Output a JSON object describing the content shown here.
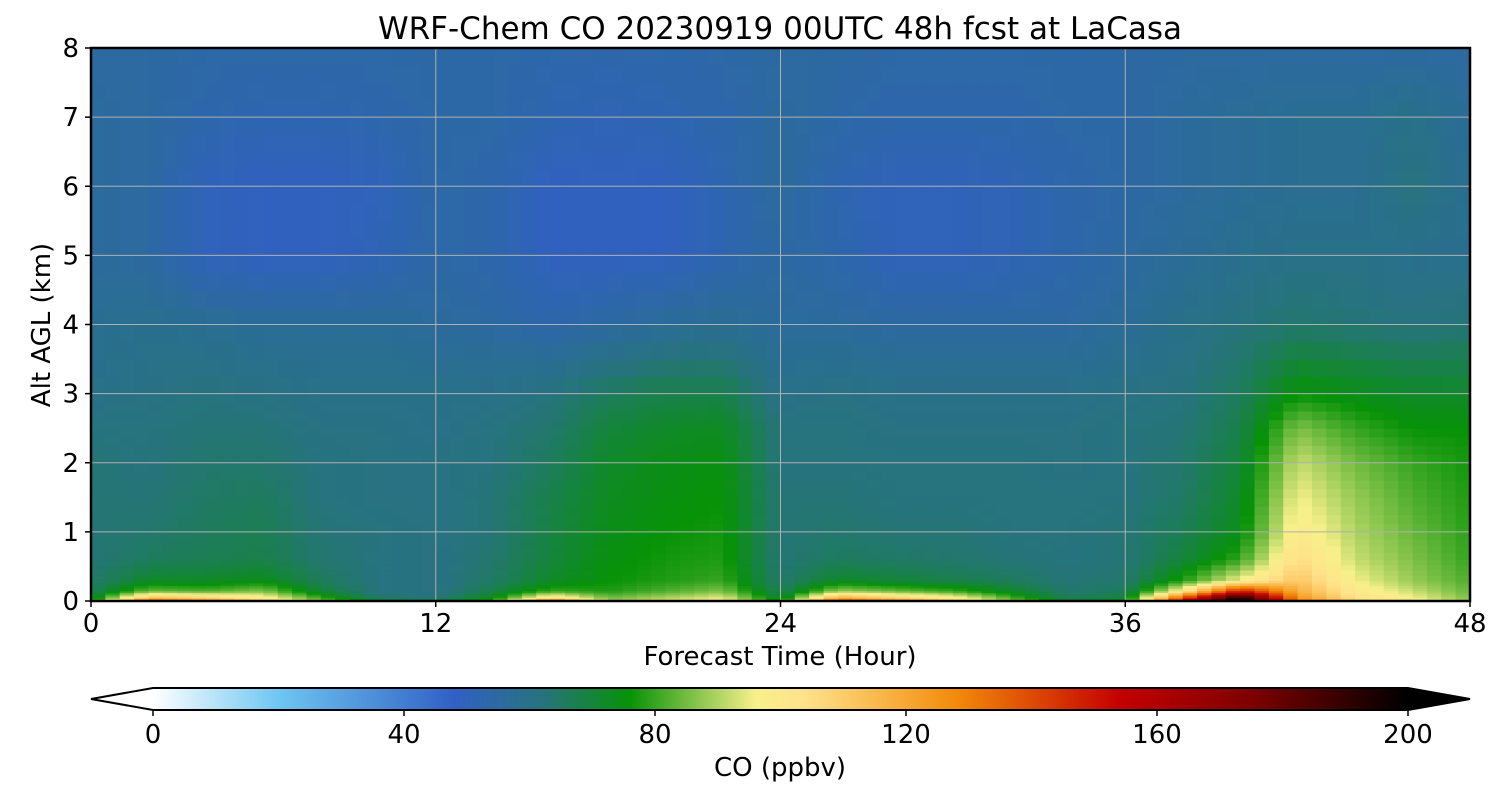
{
  "chart_data": {
    "type": "heatmap",
    "title": "WRF-Chem CO  20230919 00UTC 48h fcst at LaCasa",
    "xlabel": "Forecast Time (Hour)",
    "ylabel": "Alt AGL (km)",
    "xlim": [
      0,
      48
    ],
    "ylim": [
      0,
      8
    ],
    "xticks": [
      0,
      12,
      24,
      36,
      48
    ],
    "yticks": [
      0,
      1,
      2,
      3,
      4,
      5,
      6,
      7,
      8
    ],
    "grid": true,
    "colorbar": {
      "label": "CO  (ppbv)",
      "range": [
        0,
        200
      ],
      "ticks": [
        0,
        40,
        80,
        120,
        160,
        200
      ],
      "extend": "both",
      "stops": [
        {
          "value": 0,
          "color": "#ffffff"
        },
        {
          "value": 20,
          "color": "#6ec6f2"
        },
        {
          "value": 48,
          "color": "#3160c4"
        },
        {
          "value": 62,
          "color": "#27737e"
        },
        {
          "value": 76,
          "color": "#079207"
        },
        {
          "value": 96,
          "color": "#f7f08a"
        },
        {
          "value": 104,
          "color": "#ffe28a"
        },
        {
          "value": 128,
          "color": "#f38a0a"
        },
        {
          "value": 154,
          "color": "#c40000"
        },
        {
          "value": 176,
          "color": "#7a0000"
        },
        {
          "value": 200,
          "color": "#000000"
        }
      ]
    },
    "x": [
      0,
      2,
      4,
      6,
      8,
      10,
      12,
      14,
      16,
      18,
      20,
      22,
      24,
      26,
      28,
      30,
      32,
      34,
      36,
      38,
      40,
      42,
      44,
      46,
      48
    ],
    "y": [
      0,
      0.05,
      0.15,
      0.3,
      0.6,
      1,
      1.5,
      2,
      2.5,
      3,
      4,
      5,
      6,
      7,
      8
    ],
    "values": [
      [
        78,
        150,
        130,
        110,
        90,
        78,
        78,
        84,
        150,
        90,
        95,
        100,
        78,
        150,
        130,
        110,
        90,
        76,
        78,
        160,
        200,
        130,
        110,
        100,
        90
      ],
      [
        70,
        115,
        110,
        100,
        80,
        64,
        62,
        74,
        105,
        85,
        90,
        95,
        70,
        120,
        110,
        100,
        82,
        66,
        70,
        140,
        200,
        125,
        104,
        96,
        86
      ],
      [
        66,
        84,
        82,
        86,
        70,
        62,
        61,
        68,
        80,
        78,
        82,
        86,
        66,
        88,
        84,
        80,
        72,
        64,
        66,
        100,
        150,
        118,
        100,
        92,
        84
      ],
      [
        64,
        72,
        72,
        74,
        66,
        62,
        61,
        65,
        72,
        76,
        78,
        80,
        64,
        72,
        70,
        68,
        66,
        63,
        64,
        78,
        96,
        112,
        96,
        88,
        82
      ],
      [
        63,
        66,
        67,
        68,
        64,
        62,
        61,
        64,
        70,
        75,
        77,
        78,
        63,
        66,
        65,
        64,
        63,
        62,
        63,
        70,
        80,
        106,
        92,
        86,
        80
      ],
      [
        63,
        64,
        66,
        67,
        63,
        62,
        61,
        63,
        69,
        74,
        76,
        77,
        63,
        64,
        63,
        63,
        62,
        62,
        63,
        67,
        74,
        100,
        90,
        84,
        79
      ],
      [
        63,
        63,
        65,
        66,
        62,
        61,
        61,
        63,
        68,
        73,
        75,
        76,
        63,
        63,
        62,
        62,
        62,
        62,
        62,
        65,
        72,
        96,
        88,
        82,
        78
      ],
      [
        63,
        62,
        64,
        64,
        62,
        61,
        61,
        62,
        66,
        72,
        74,
        75,
        62,
        62,
        62,
        62,
        62,
        61,
        62,
        64,
        70,
        92,
        85,
        80,
        77
      ],
      [
        62,
        62,
        63,
        63,
        61,
        61,
        60,
        62,
        64,
        70,
        72,
        73,
        62,
        62,
        61,
        61,
        61,
        61,
        62,
        63,
        68,
        86,
        80,
        76,
        76
      ],
      [
        60,
        61,
        62,
        61,
        60,
        60,
        60,
        60,
        62,
        66,
        68,
        68,
        60,
        61,
        60,
        60,
        60,
        60,
        61,
        62,
        66,
        76,
        74,
        72,
        72
      ],
      [
        58,
        59,
        58,
        57,
        57,
        57,
        56,
        55,
        53,
        55,
        57,
        58,
        56,
        56,
        55,
        55,
        55,
        55,
        57,
        60,
        62,
        64,
        63,
        62,
        63
      ],
      [
        56,
        55,
        50,
        49,
        49,
        51,
        54,
        53,
        49,
        49,
        49,
        52,
        55,
        53,
        50,
        50,
        51,
        53,
        55,
        57,
        59,
        60,
        60,
        59,
        59
      ],
      [
        56,
        55,
        50,
        49,
        49,
        50,
        54,
        53,
        49,
        49,
        49,
        52,
        56,
        52,
        50,
        50,
        51,
        53,
        54,
        56,
        57,
        58,
        58,
        62,
        58
      ],
      [
        56,
        55,
        53,
        52,
        52,
        53,
        54,
        54,
        52,
        51,
        52,
        53,
        56,
        54,
        53,
        53,
        53,
        54,
        54,
        56,
        57,
        58,
        58,
        60,
        57
      ],
      [
        55,
        55,
        54,
        54,
        54,
        54,
        54,
        54,
        53,
        53,
        53,
        54,
        55,
        55,
        54,
        54,
        54,
        54,
        54,
        55,
        55,
        55,
        55,
        55,
        55
      ]
    ]
  }
}
